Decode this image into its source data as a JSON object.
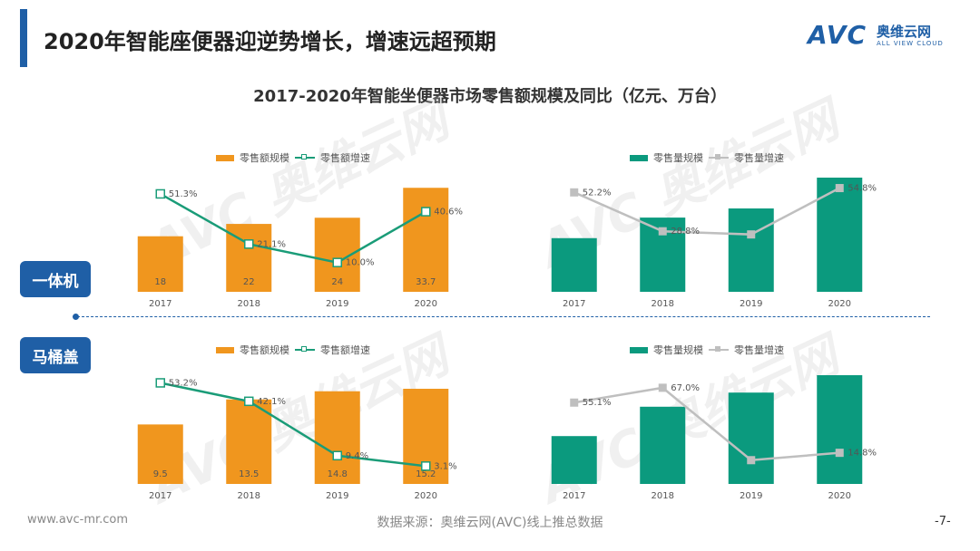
{
  "header": {
    "title": "2020年智能座便器迎逆势增长，增速远超预期",
    "logo_text": "AVC",
    "logo_cn": "奥维云网",
    "logo_en": "ALL VIEW CLOUD"
  },
  "chart_title": "2017-2020年智能坐便器市场零售额规模及同比（亿元、万台）",
  "rows": {
    "row1_label": "一体机",
    "row2_label": "马桶盖"
  },
  "colors": {
    "orange": "#f0961e",
    "teal": "#0b9a7e",
    "green_line": "#1a9c78",
    "gray_line": "#bfbfbf",
    "accent": "#1f5fa6"
  },
  "chart_data": [
    {
      "type": "bar",
      "panel": "一体机-零售额",
      "categories": [
        "2017",
        "2018",
        "2019",
        "2020"
      ],
      "series": [
        {
          "name": "零售额规模",
          "kind": "bar",
          "values": [
            18,
            22,
            24,
            33.7
          ],
          "labels": [
            "18",
            "22",
            "24",
            "33.7"
          ]
        },
        {
          "name": "零售额增速",
          "kind": "line",
          "values": [
            51.3,
            21.1,
            10.0,
            40.6
          ],
          "labels": [
            "51.3%",
            "21.1%",
            "10.0%",
            "40.6%"
          ]
        }
      ],
      "bar_max": 37,
      "line_range": [
        0,
        60
      ]
    },
    {
      "type": "bar",
      "panel": "一体机-零售量",
      "categories": [
        "2017",
        "2018",
        "2019",
        "2020"
      ],
      "series": [
        {
          "name": "零售量规模",
          "kind": "bar",
          "values": [
            null,
            null,
            null,
            null
          ],
          "rel": [
            0.47,
            0.65,
            0.73,
            1.0
          ]
        },
        {
          "name": "零售量增速",
          "kind": "line",
          "values": [
            52.2,
            28.8,
            26.9,
            54.8
          ],
          "labels": [
            "52.2%",
            "28.8%",
            "",
            "54.8%"
          ]
        }
      ],
      "line_range": [
        0,
        60
      ]
    },
    {
      "type": "bar",
      "panel": "马桶盖-零售额",
      "categories": [
        "2017",
        "2018",
        "2019",
        "2020"
      ],
      "series": [
        {
          "name": "零售额规模",
          "kind": "bar",
          "values": [
            9.5,
            13.5,
            14.8,
            15.2
          ],
          "labels": [
            "9.5",
            "13.5",
            "14.8",
            "15.2"
          ]
        },
        {
          "name": "零售额增速",
          "kind": "line",
          "values": [
            53.2,
            42.1,
            9.4,
            3.1
          ],
          "labels": [
            "53.2%",
            "42.1%",
            "9.4%",
            "3.1%"
          ]
        }
      ],
      "bar_max": 16.5,
      "line_range": [
        0,
        60
      ]
    },
    {
      "type": "bar",
      "panel": "马桶盖-零售量",
      "categories": [
        "2017",
        "2018",
        "2019",
        "2020"
      ],
      "series": [
        {
          "name": "零售量规模",
          "kind": "bar",
          "values": [
            null,
            null,
            null,
            null
          ],
          "rel": [
            0.44,
            0.71,
            0.84,
            1.0
          ]
        },
        {
          "name": "零售量增速",
          "kind": "line",
          "values": [
            55.1,
            67.0,
            8.9,
            14.8
          ],
          "labels": [
            "55.1%",
            "67.0%",
            "",
            "14.8%"
          ]
        }
      ],
      "line_range": [
        0,
        80
      ]
    }
  ],
  "footer": {
    "url": "www.avc-mr.com",
    "source": "数据来源：奥维云网(AVC)线上推总数据",
    "page": "-7-"
  },
  "watermark": "AVC 奥维云网"
}
